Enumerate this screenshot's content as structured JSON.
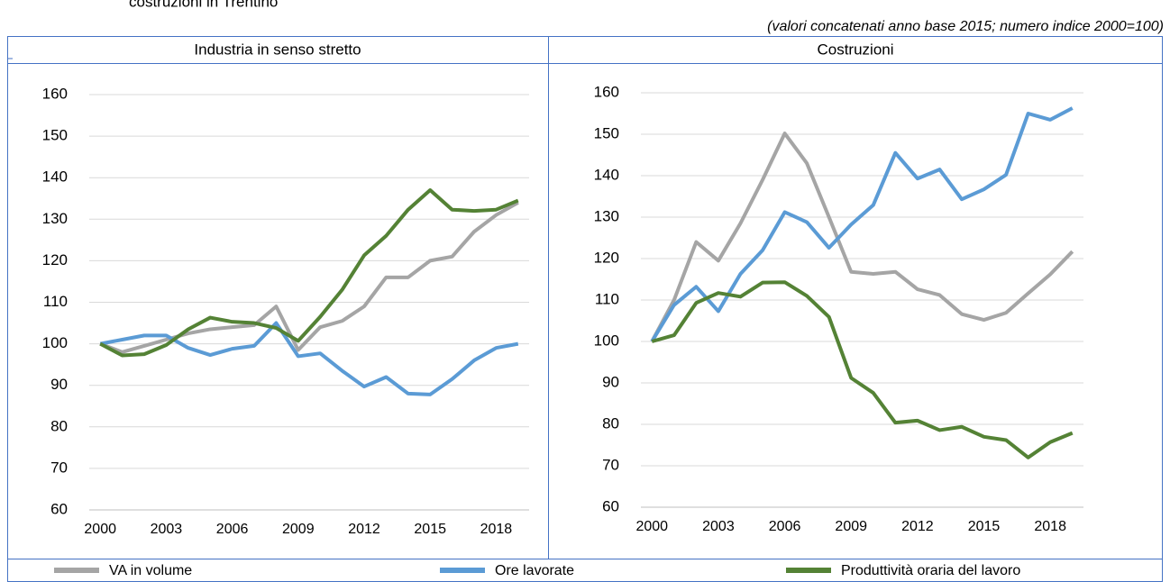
{
  "title": "costruzioni in Trentino",
  "subtitle": "(valori concatenati anno base 2015; numero indice 2000=100)",
  "chart_data": [
    {
      "type": "line",
      "title": "Industria in senso stretto",
      "x": [
        2000,
        2001,
        2002,
        2003,
        2004,
        2005,
        2006,
        2007,
        2008,
        2009,
        2010,
        2011,
        2012,
        2013,
        2014,
        2015,
        2016,
        2017,
        2018,
        2019
      ],
      "xlim": [
        1999.5,
        2019.5
      ],
      "xticks": [
        2000,
        2003,
        2006,
        2009,
        2012,
        2015,
        2018
      ],
      "ylim": [
        60,
        160
      ],
      "yticks": [
        60,
        70,
        80,
        90,
        100,
        110,
        120,
        130,
        140,
        150,
        160
      ],
      "grid": true,
      "series": [
        {
          "name": "VA in volume",
          "color": "#a5a5a5",
          "values": [
            100,
            98,
            99.5,
            101,
            102.5,
            103.5,
            104,
            104.5,
            109,
            98.5,
            104,
            105.5,
            109,
            116,
            116,
            120,
            121,
            127,
            131,
            134
          ]
        },
        {
          "name": "Ore lavorate",
          "color": "#5b9bd5",
          "values": [
            100,
            101,
            102,
            102,
            99,
            97.3,
            98.8,
            99.5,
            105,
            97,
            97.7,
            93.5,
            89.7,
            92,
            88,
            87.8,
            91.5,
            96,
            99,
            100
          ]
        },
        {
          "name": "Produttività oraria del lavoro",
          "color": "#548235",
          "values": [
            100,
            97.2,
            97.5,
            99.7,
            103.5,
            106.3,
            105.3,
            105,
            103.8,
            100.7,
            106.5,
            113,
            121.3,
            126,
            132.3,
            137,
            132.3,
            132,
            132.3,
            134.5
          ]
        }
      ]
    },
    {
      "type": "line",
      "title": "Costruzioni",
      "x": [
        2000,
        2001,
        2002,
        2003,
        2004,
        2005,
        2006,
        2007,
        2008,
        2009,
        2010,
        2011,
        2012,
        2013,
        2014,
        2015,
        2016,
        2017,
        2018,
        2019
      ],
      "xlim": [
        1999.5,
        2019.5
      ],
      "xticks": [
        2000,
        2003,
        2006,
        2009,
        2012,
        2015,
        2018
      ],
      "ylim": [
        60,
        160
      ],
      "yticks": [
        60,
        70,
        80,
        90,
        100,
        110,
        120,
        130,
        140,
        150,
        160
      ],
      "grid": true,
      "series": [
        {
          "color": "#a5a5a5",
          "values": [
            100,
            110,
            124,
            119.5,
            128.5,
            139,
            150.2,
            143,
            130,
            116.8,
            116.3,
            116.8,
            112.6,
            111.2,
            106.6,
            105.2,
            106.9,
            111.6,
            116.2,
            121.7
          ]
        },
        {
          "color": "#5b9bd5",
          "values": [
            100,
            108.8,
            113.2,
            107.3,
            116.3,
            122,
            131.2,
            128.8,
            122.6,
            128.2,
            132.9,
            145.5,
            139.3,
            141.5,
            134.3,
            136.7,
            140.2,
            155,
            153.5,
            156.3
          ]
        },
        {
          "color": "#548235",
          "values": [
            100,
            101.5,
            109.3,
            111.7,
            110.8,
            114.2,
            114.3,
            111,
            105.9,
            91.2,
            87.6,
            80.4,
            80.9,
            78.6,
            79.4,
            77,
            76.2,
            72,
            75.7,
            77.9
          ]
        }
      ]
    }
  ]
}
